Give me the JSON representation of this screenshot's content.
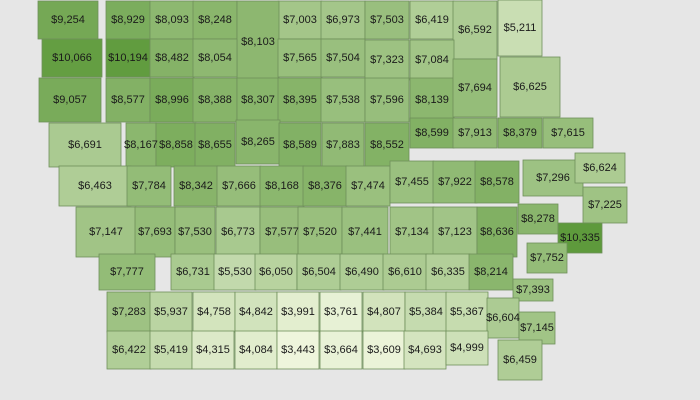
{
  "map": {
    "colors": {
      "low": "#eef5dc",
      "high": "#5e9a3c"
    },
    "counties": [
      {
        "value": 9254,
        "label": "$9,254"
      },
      {
        "value": 8929,
        "label": "$8,929"
      },
      {
        "value": 8093,
        "label": "$8,093"
      },
      {
        "value": 8248,
        "label": "$8,248"
      },
      {
        "value": 7003,
        "label": "$7,003"
      },
      {
        "value": 6973,
        "label": "$6,973"
      },
      {
        "value": 7503,
        "label": "$7,503"
      },
      {
        "value": 6419,
        "label": "$6,419"
      },
      {
        "value": 6592,
        "label": "$6,592"
      },
      {
        "value": 5211,
        "label": "$5,211"
      },
      {
        "value": 8103,
        "label": "$8,103"
      },
      {
        "value": 10066,
        "label": "$10,066"
      },
      {
        "value": 10194,
        "label": "$10,194"
      },
      {
        "value": 8482,
        "label": "$8,482"
      },
      {
        "value": 8054,
        "label": "$8,054"
      },
      {
        "value": 7565,
        "label": "$7,565"
      },
      {
        "value": 7504,
        "label": "$7,504"
      },
      {
        "value": 7323,
        "label": "$7,323"
      },
      {
        "value": 7084,
        "label": "$7,084"
      },
      {
        "value": 6625,
        "label": "$6,625"
      },
      {
        "value": 9057,
        "label": "$9,057"
      },
      {
        "value": 8577,
        "label": "$8,577"
      },
      {
        "value": 8996,
        "label": "$8,996"
      },
      {
        "value": 8388,
        "label": "$8,388"
      },
      {
        "value": 8307,
        "label": "$8,307"
      },
      {
        "value": 8395,
        "label": "$8,395"
      },
      {
        "value": 7538,
        "label": "$7,538"
      },
      {
        "value": 7596,
        "label": "$7,596"
      },
      {
        "value": 8139,
        "label": "$8,139"
      },
      {
        "value": 7694,
        "label": "$7,694"
      },
      {
        "value": 6691,
        "label": "$6,691"
      },
      {
        "value": 8167,
        "label": "$8,167"
      },
      {
        "value": 8858,
        "label": "$8,858"
      },
      {
        "value": 8655,
        "label": "$8,655"
      },
      {
        "value": 8265,
        "label": "$8,265"
      },
      {
        "value": 8589,
        "label": "$8,589"
      },
      {
        "value": 7883,
        "label": "$7,883"
      },
      {
        "value": 8552,
        "label": "$8,552"
      },
      {
        "value": 8599,
        "label": "$8,599"
      },
      {
        "value": 7913,
        "label": "$7,913"
      },
      {
        "value": 8379,
        "label": "$8,379"
      },
      {
        "value": 7615,
        "label": "$7,615"
      },
      {
        "value": 6463,
        "label": "$6,463"
      },
      {
        "value": 7784,
        "label": "$7,784"
      },
      {
        "value": 8342,
        "label": "$8,342"
      },
      {
        "value": 7666,
        "label": "$7,666"
      },
      {
        "value": 8168,
        "label": "$8,168"
      },
      {
        "value": 8376,
        "label": "$8,376"
      },
      {
        "value": 7474,
        "label": "$7,474"
      },
      {
        "value": 7455,
        "label": "$7,455"
      },
      {
        "value": 7922,
        "label": "$7,922"
      },
      {
        "value": 8578,
        "label": "$8,578"
      },
      {
        "value": 7296,
        "label": "$7,296"
      },
      {
        "value": 6624,
        "label": "$6,624"
      },
      {
        "value": 7225,
        "label": "$7,225"
      },
      {
        "value": 7147,
        "label": "$7,147"
      },
      {
        "value": 7693,
        "label": "$7,693"
      },
      {
        "value": 7530,
        "label": "$7,530"
      },
      {
        "value": 6773,
        "label": "$6,773"
      },
      {
        "value": 7577,
        "label": "$7,577"
      },
      {
        "value": 7520,
        "label": "$7,520"
      },
      {
        "value": 7441,
        "label": "$7,441"
      },
      {
        "value": 7134,
        "label": "$7,134"
      },
      {
        "value": 7123,
        "label": "$7,123"
      },
      {
        "value": 8636,
        "label": "$8,636"
      },
      {
        "value": 8278,
        "label": "$8,278"
      },
      {
        "value": 10335,
        "label": "$10,335"
      },
      {
        "value": 7777,
        "label": "$7,777"
      },
      {
        "value": 6731,
        "label": "$6,731"
      },
      {
        "value": 5530,
        "label": "$5,530"
      },
      {
        "value": 6050,
        "label": "$6,050"
      },
      {
        "value": 6504,
        "label": "$6,504"
      },
      {
        "value": 6490,
        "label": "$6,490"
      },
      {
        "value": 6610,
        "label": "$6,610"
      },
      {
        "value": 6335,
        "label": "$6,335"
      },
      {
        "value": 8214,
        "label": "$8,214"
      },
      {
        "value": 7752,
        "label": "$7,752"
      },
      {
        "value": 7393,
        "label": "$7,393"
      },
      {
        "value": 7283,
        "label": "$7,283"
      },
      {
        "value": 5937,
        "label": "$5,937"
      },
      {
        "value": 4758,
        "label": "$4,758"
      },
      {
        "value": 4842,
        "label": "$4,842"
      },
      {
        "value": 3991,
        "label": "$3,991"
      },
      {
        "value": 3761,
        "label": "$3,761"
      },
      {
        "value": 4807,
        "label": "$4,807"
      },
      {
        "value": 5384,
        "label": "$5,384"
      },
      {
        "value": 5367,
        "label": "$5,367"
      },
      {
        "value": 6604,
        "label": "$6,604"
      },
      {
        "value": 7145,
        "label": "$7,145"
      },
      {
        "value": 6422,
        "label": "$6,422"
      },
      {
        "value": 5419,
        "label": "$5,419"
      },
      {
        "value": 4315,
        "label": "$4,315"
      },
      {
        "value": 4084,
        "label": "$4,084"
      },
      {
        "value": 3443,
        "label": "$3,443"
      },
      {
        "value": 3664,
        "label": "$3,664"
      },
      {
        "value": 3609,
        "label": "$3,609"
      },
      {
        "value": 4693,
        "label": "$4,693"
      },
      {
        "value": 4999,
        "label": "$4,999"
      },
      {
        "value": 6459,
        "label": "$6,459"
      }
    ]
  }
}
